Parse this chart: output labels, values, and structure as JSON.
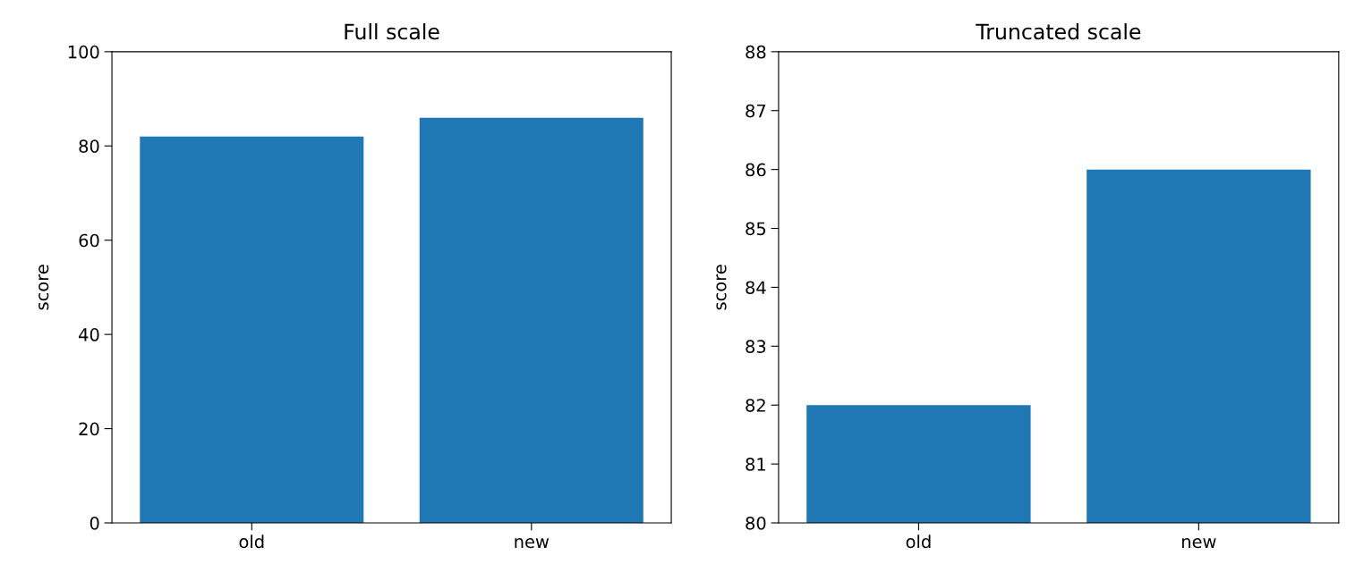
{
  "chart_data": [
    {
      "type": "bar",
      "title": "Full scale",
      "ylabel": "score",
      "categories": [
        "old",
        "new"
      ],
      "values": [
        82,
        86
      ],
      "color": "#1f77b4",
      "ylim": [
        0,
        100
      ],
      "yticks": [
        0,
        20,
        40,
        60,
        80,
        100
      ],
      "grid": false
    },
    {
      "type": "bar",
      "title": "Truncated scale",
      "ylabel": "score",
      "categories": [
        "old",
        "new"
      ],
      "values": [
        82,
        86
      ],
      "color": "#1f77b4",
      "ylim": [
        80,
        88
      ],
      "yticks": [
        80,
        81,
        82,
        83,
        84,
        85,
        86,
        87,
        88
      ],
      "grid": false
    }
  ]
}
